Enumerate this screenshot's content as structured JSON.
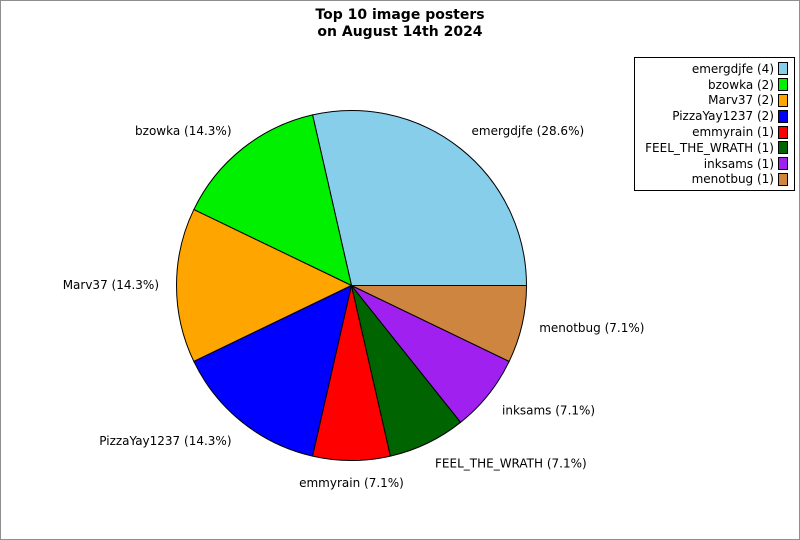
{
  "figure": {
    "title_line1": "Top 10 image posters",
    "title_line2": "on August 14th 2024"
  },
  "chart_data": {
    "type": "pie",
    "title": "Top 10 image posters on August 14th 2024",
    "categories": [
      "emergdjfe",
      "bzowka",
      "Marv37",
      "PizzaYay1237",
      "emmyrain",
      "FEEL_THE_WRATH",
      "inksams",
      "menotbug"
    ],
    "values": [
      4,
      2,
      2,
      2,
      1,
      1,
      1,
      1
    ],
    "percentages": [
      28.6,
      14.3,
      14.3,
      14.3,
      7.1,
      7.1,
      7.1,
      7.1
    ],
    "slice_labels": [
      "emergdjfe (28.6%)",
      "bzowka (14.3%)",
      "Marv37 (14.3%)",
      "PizzaYay1237 (14.3%)",
      "emmyrain (7.1%)",
      "FEEL_THE_WRATH (7.1%)",
      "inksams (7.1%)",
      "menotbug (7.1%)"
    ],
    "legend_labels": [
      "emergdjfe (4)",
      "bzowka (2)",
      "Marv37 (2)",
      "PizzaYay1237 (2)",
      "emmyrain (1)",
      "FEEL_THE_WRATH (1)",
      "inksams (1)",
      "menotbug (1)"
    ],
    "colors": [
      "#87CEEB",
      "#00F000",
      "#FFA500",
      "#0000FF",
      "#FF0000",
      "#006400",
      "#A020F0",
      "#CD853F"
    ],
    "edge_color": "#000000",
    "background": "#FFFFFF",
    "start_angle_deg": 0,
    "direction": "counterclockwise",
    "label_distance": 1.1,
    "legend_position": "upper right",
    "legend_marker_side": "right"
  }
}
